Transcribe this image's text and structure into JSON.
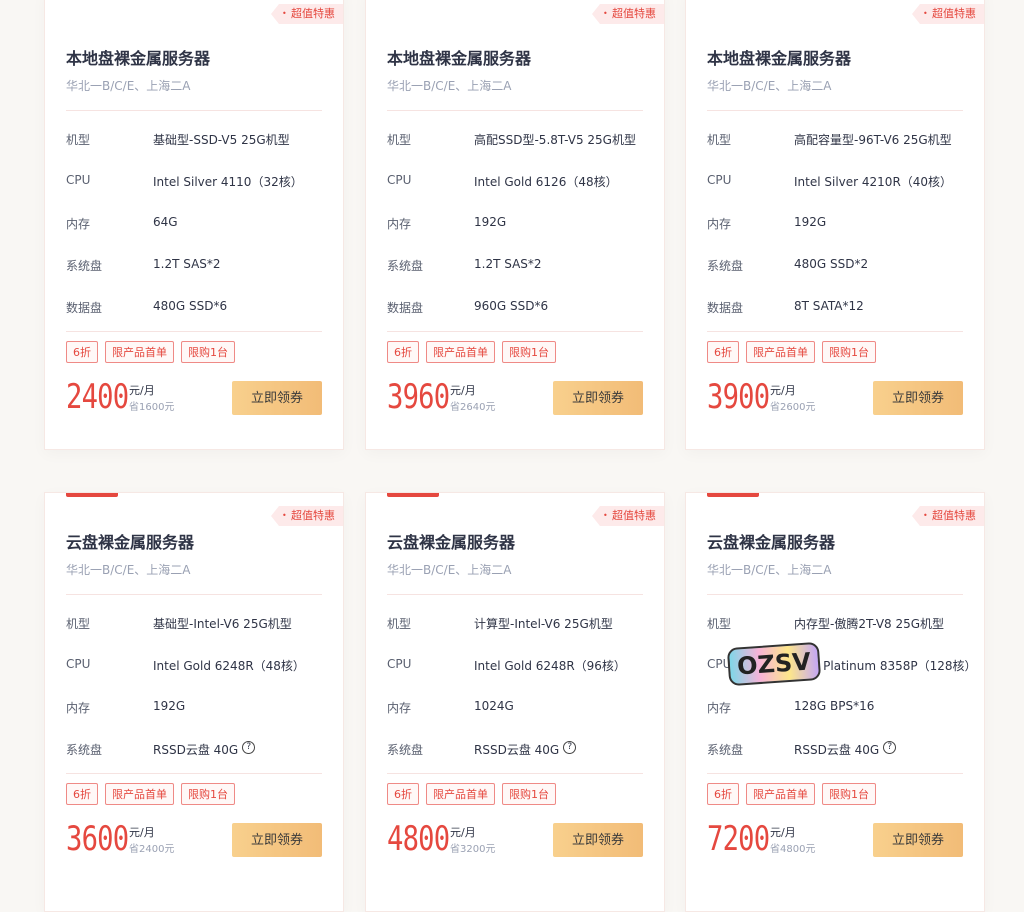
{
  "ribbon": "超值特惠",
  "labels": {
    "model": "机型",
    "cpu": "CPU",
    "mem": "内存",
    "sys": "系统盘",
    "data": "数据盘"
  },
  "tags": [
    "6折",
    "限产品首单",
    "限购1台"
  ],
  "unit": "元/月",
  "button": "立即领券",
  "watermark": "OZSV",
  "cards": [
    {
      "title": "本地盘裸金属服务器",
      "region": "华北一B/C/E、上海二A",
      "model": "基础型-SSD-V5 25G机型",
      "cpu": "Intel Silver 4110（32核）",
      "mem": "64G",
      "sys": "1.2T SAS*2",
      "data": "480G SSD*6",
      "price": "2400",
      "save": "省1600元"
    },
    {
      "title": "本地盘裸金属服务器",
      "region": "华北一B/C/E、上海二A",
      "model": "高配SSD型-5.8T-V5 25G机型",
      "cpu": "Intel Gold 6126（48核）",
      "mem": "192G",
      "sys": "1.2T SAS*2",
      "data": "960G SSD*6",
      "price": "3960",
      "save": "省2640元"
    },
    {
      "title": "本地盘裸金属服务器",
      "region": "华北一B/C/E、上海二A",
      "model": "高配容量型-96T-V6 25G机型",
      "cpu": "Intel Silver 4210R（40核）",
      "mem": "192G",
      "sys": "480G SSD*2",
      "data": "8T SATA*12",
      "price": "3900",
      "save": "省2600元"
    },
    {
      "title": "云盘裸金属服务器",
      "region": "华北一B/C/E、上海二A",
      "model": "基础型-Intel-V6 25G机型",
      "cpu": "Intel Gold 6248R（48核）",
      "mem": "192G",
      "sys": "RSSD云盘 40G",
      "price": "3600",
      "save": "省2400元"
    },
    {
      "title": "云盘裸金属服务器",
      "region": "华北一B/C/E、上海二A",
      "model": "计算型-Intel-V6 25G机型",
      "cpu": "Intel Gold 6248R（96核）",
      "mem": "1024G",
      "sys": "RSSD云盘 40G",
      "price": "4800",
      "save": "省3200元"
    },
    {
      "title": "云盘裸金属服务器",
      "region": "华北一B/C/E、上海二A",
      "model": "内存型-傲腾2T-V8 25G机型",
      "cpu": "Intel Platinum 8358P（128核）",
      "mem": "128G BPS*16",
      "sys": "RSSD云盘 40G",
      "price": "7200",
      "save": "省4800元"
    }
  ]
}
